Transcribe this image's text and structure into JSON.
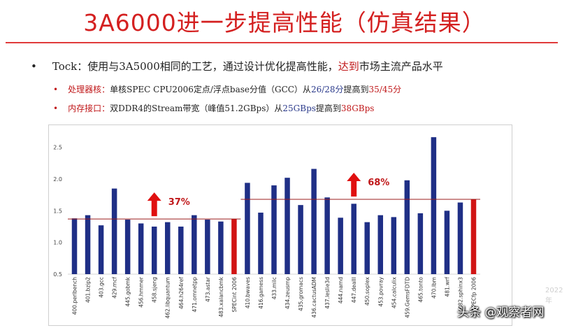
{
  "title": "3A6000进一步提高性能（仿真结果）",
  "bullet": {
    "prefix": "Tock：使用与3A5000相同的工艺，通过设计优化提高性能，",
    "highlight": "达到",
    "suffix": "市场主流产品水平"
  },
  "sub1": {
    "key": "处理器核：",
    "text1": "单核SPEC CPU2006定点/浮点base分值（GCC）从",
    "from": "26/28分",
    "text2": "提高到",
    "to": "35/45分"
  },
  "sub2": {
    "key": "内存接口：",
    "text1": "双DDR4的Stream带宽（峰值51.2GBps）从",
    "from": "25GBps",
    "text2": "提高到",
    "to": "38GBps"
  },
  "colors": {
    "bar_blue": "#1f2f86",
    "bar_red": "#d11515",
    "accent_red": "#c0181a",
    "line": "#9b1c1c"
  },
  "chart_data": {
    "type": "bar",
    "ylim": [
      0.5,
      2.75
    ],
    "yticks": [
      "0.5",
      "1.0",
      "1.5",
      "2.0",
      "2.5"
    ],
    "categories": [
      "400.perlbench",
      "401.bzip2",
      "403.gcc",
      "429.mcf",
      "445.gobmk",
      "456.hmmer",
      "458.sjeng",
      "462.libquantum",
      "464.h264ref",
      "471.omnetpp",
      "473.astar",
      "483.xalancbmk",
      "SPECint 2006",
      "410.bwaves",
      "416.gamess",
      "433.milc",
      "434.zeusmp",
      "435.gromacs",
      "436.cactusADM",
      "437.leslie3d",
      "444.namd",
      "447.dealII",
      "450.soplex",
      "453.povray",
      "454.calculix",
      "459.GemsFDTD",
      "465.tonto",
      "470.lbm",
      "481.wrf",
      "482.sphinx3",
      "SPECfp 2006"
    ],
    "values": [
      1.38,
      1.43,
      1.27,
      1.85,
      1.36,
      1.3,
      1.25,
      1.32,
      1.25,
      1.43,
      1.36,
      1.33,
      1.37,
      1.94,
      1.47,
      1.9,
      2.02,
      1.59,
      2.16,
      1.71,
      1.39,
      1.61,
      1.32,
      1.43,
      1.4,
      1.98,
      1.46,
      2.66,
      1.5,
      1.63,
      1.68
    ],
    "highlight_indices": [
      12,
      30
    ],
    "reference_lines": [
      {
        "value": 1.37,
        "from_index": 0,
        "to_index": 12
      },
      {
        "value": 1.68,
        "from_index": 13,
        "to_index": 30
      }
    ],
    "annotations": [
      {
        "label": "37%",
        "near_index": 6
      },
      {
        "label": "68%",
        "near_index": 21
      }
    ]
  },
  "watermark": {
    "text": "头条 @观察者网",
    "year": "2022年"
  }
}
